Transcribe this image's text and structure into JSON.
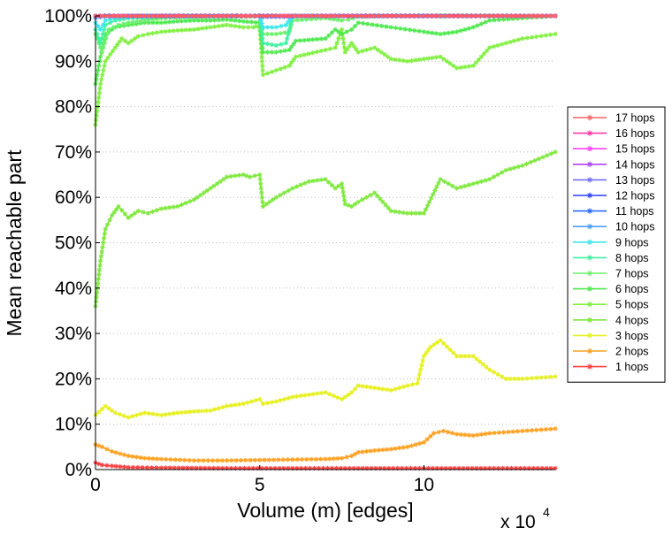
{
  "chart_data": {
    "type": "line",
    "xlabel": "Volume (m) [edges]",
    "ylabel": "Mean reachable part",
    "x_exponent_label": "x 10",
    "x_exponent_power": "4",
    "xlim": [
      0,
      14
    ],
    "ylim": [
      0,
      100
    ],
    "x_ticks": [
      0,
      5,
      10
    ],
    "x_tick_labels": [
      "0",
      "5",
      "10"
    ],
    "y_ticks": [
      0,
      10,
      20,
      30,
      40,
      50,
      60,
      70,
      80,
      90,
      100
    ],
    "y_tick_labels": [
      "0%",
      "10%",
      "20%",
      "30%",
      "40%",
      "50%",
      "60%",
      "70%",
      "80%",
      "90%",
      "100%"
    ],
    "grid": "horizontal dotted",
    "legend_position": "right",
    "marker": "asterisk",
    "series": [
      {
        "name": "17 hops",
        "color": "#ff6060",
        "x": [
          0,
          14
        ],
        "y": [
          100,
          100
        ]
      },
      {
        "name": "16 hops",
        "color": "#ff3aa8",
        "x": [
          0,
          14
        ],
        "y": [
          100,
          100
        ]
      },
      {
        "name": "15 hops",
        "color": "#ff40ff",
        "x": [
          0,
          14
        ],
        "y": [
          100,
          100
        ]
      },
      {
        "name": "14 hops",
        "color": "#b040ff",
        "x": [
          0,
          14
        ],
        "y": [
          100,
          100
        ]
      },
      {
        "name": "13 hops",
        "color": "#6f6fff",
        "x": [
          0,
          14
        ],
        "y": [
          100,
          100
        ]
      },
      {
        "name": "12 hops",
        "color": "#2a3dff",
        "x": [
          0,
          14
        ],
        "y": [
          100,
          100
        ]
      },
      {
        "name": "11 hops",
        "color": "#2a6bff",
        "x": [
          0,
          1,
          2,
          4,
          5,
          5.1,
          6,
          6.1,
          14
        ],
        "y": [
          100,
          100,
          100,
          100,
          100,
          100,
          100,
          100,
          100
        ]
      },
      {
        "name": "10 hops",
        "color": "#4aa0ff",
        "x": [
          0,
          0.3,
          1,
          4,
          5,
          5.1,
          6,
          6.1,
          14
        ],
        "y": [
          99.5,
          100,
          100,
          100,
          100,
          99.8,
          99.8,
          100,
          100
        ]
      },
      {
        "name": "9 hops",
        "color": "#3ce6ee",
        "x": [
          0,
          0.15,
          0.3,
          0.6,
          1,
          2,
          4,
          5,
          5.1,
          5.5,
          5.8,
          6,
          7,
          14
        ],
        "y": [
          98.5,
          97,
          99,
          99.5,
          99.8,
          100,
          100,
          100,
          97.5,
          97.5,
          98,
          100,
          100,
          100
        ]
      },
      {
        "name": "8 hops",
        "color": "#3ef0a0",
        "x": [
          0,
          0.15,
          0.3,
          0.6,
          1,
          2,
          4,
          5,
          5.1,
          5.5,
          5.8,
          6,
          7,
          14
        ],
        "y": [
          97,
          94,
          98,
          99,
          99.5,
          99.8,
          100,
          100,
          94,
          93.5,
          94,
          99.8,
          100,
          100
        ]
      },
      {
        "name": "7 hops",
        "color": "#6cf06c",
        "x": [
          0,
          0.2,
          0.4,
          0.7,
          1,
          1.5,
          2,
          3,
          4,
          4.6,
          5,
          5.1,
          5.5,
          5.9,
          6,
          7,
          7.5,
          7.7,
          8,
          9,
          10,
          11,
          12,
          14
        ],
        "y": [
          96,
          92,
          97,
          98,
          98.5,
          99,
          99.5,
          99.8,
          100,
          99.8,
          100,
          96,
          96,
          96.5,
          99,
          99.5,
          99,
          99.2,
          99.8,
          100,
          100,
          100,
          100,
          100
        ]
      },
      {
        "name": "6 hops",
        "color": "#4ee84e",
        "x": [
          0,
          0.15,
          0.3,
          0.6,
          1,
          1.5,
          2,
          2.5,
          3,
          3.5,
          4,
          4.5,
          5,
          5.1,
          5.5,
          5.9,
          6.1,
          7,
          7.3,
          7.5,
          7.8,
          8,
          9,
          10,
          10.5,
          11,
          11.5,
          12,
          13,
          14
        ],
        "y": [
          85,
          91,
          96,
          97.5,
          98,
          98.5,
          98.5,
          98.8,
          99,
          99,
          99.2,
          98.8,
          98.5,
          92,
          92,
          92.5,
          94.5,
          95,
          97,
          96,
          97,
          98.5,
          97.5,
          96.5,
          96,
          96.5,
          97.5,
          99,
          99.5,
          100
        ]
      },
      {
        "name": "5 hops",
        "color": "#80f040",
        "x": [
          0,
          0.15,
          0.3,
          0.6,
          0.8,
          1,
          1.3,
          1.6,
          2,
          2.5,
          3,
          3.5,
          4,
          4.5,
          4.8,
          5,
          5.1,
          5.5,
          5.9,
          6.1,
          7,
          7.3,
          7.5,
          7.6,
          7.8,
          8,
          8.5,
          9,
          9.5,
          10,
          10.5,
          11,
          11.5,
          12,
          13,
          14
        ],
        "y": [
          76,
          85,
          90,
          93,
          95,
          94,
          95.5,
          96,
          96.5,
          96.8,
          97,
          97.5,
          98,
          97.5,
          97.5,
          97.8,
          87,
          88,
          89,
          91,
          92.5,
          93,
          97,
          92,
          94,
          92,
          93,
          90.5,
          90,
          90.5,
          91,
          88.5,
          89,
          93,
          95,
          96
        ]
      },
      {
        "name": "4 hops",
        "color": "#7ee83c",
        "x": [
          0,
          0.15,
          0.3,
          0.5,
          0.7,
          1,
          1.3,
          1.6,
          2,
          2.5,
          3,
          3.5,
          4,
          4.5,
          4.7,
          5,
          5.1,
          5.5,
          6,
          6.5,
          7,
          7.3,
          7.5,
          7.6,
          7.8,
          8,
          8.5,
          9,
          9.5,
          10,
          10.5,
          11,
          11.5,
          12,
          12.5,
          13,
          14
        ],
        "y": [
          36,
          46,
          53,
          56,
          58,
          55.5,
          57,
          56.5,
          57.5,
          58,
          59.5,
          62,
          64.5,
          65,
          64.5,
          65,
          58,
          60,
          62,
          63.5,
          64,
          62,
          63,
          58.5,
          58,
          59,
          61,
          57,
          56.5,
          56.5,
          64,
          62,
          63,
          64,
          66,
          67,
          70
        ]
      },
      {
        "name": "3 hops",
        "color": "#e6f020",
        "x": [
          0,
          0.3,
          0.6,
          1,
          1.5,
          2,
          2.5,
          3,
          3.5,
          4,
          4.5,
          5,
          5.1,
          5.5,
          6,
          6.5,
          7,
          7.5,
          7.8,
          8,
          8.5,
          9,
          9.5,
          9.8,
          10,
          10.2,
          10.5,
          11,
          11.5,
          12,
          12.5,
          13,
          14
        ],
        "y": [
          12,
          14,
          12.5,
          11.5,
          12.5,
          12,
          12.5,
          12.8,
          13,
          14,
          14.5,
          15.5,
          14.5,
          15,
          16,
          16.5,
          17,
          15.5,
          17,
          18.5,
          18,
          17.5,
          18.5,
          19,
          25,
          27,
          28.5,
          25,
          25,
          22,
          20,
          20,
          20.5
        ]
      },
      {
        "name": "2 hops",
        "color": "#ffa020",
        "x": [
          0,
          0.2,
          0.5,
          1,
          1.5,
          2,
          3,
          4,
          5,
          6,
          7,
          7.5,
          7.8,
          8,
          8.5,
          9,
          9.5,
          10,
          10.3,
          10.6,
          11,
          11.5,
          12,
          13,
          14
        ],
        "y": [
          5.5,
          5,
          4,
          3,
          2.5,
          2.3,
          2,
          2,
          2.1,
          2.2,
          2.3,
          2.5,
          3,
          3.8,
          4.2,
          4.5,
          5,
          6,
          8,
          8.5,
          7.8,
          7.5,
          8,
          8.5,
          9
        ]
      },
      {
        "name": "1 hops",
        "color": "#ff4040",
        "x": [
          0,
          0.2,
          0.5,
          1,
          2,
          4,
          6,
          8,
          10,
          12,
          14
        ],
        "y": [
          1.5,
          1,
          0.8,
          0.5,
          0.4,
          0.3,
          0.3,
          0.3,
          0.3,
          0.3,
          0.3
        ]
      }
    ]
  }
}
